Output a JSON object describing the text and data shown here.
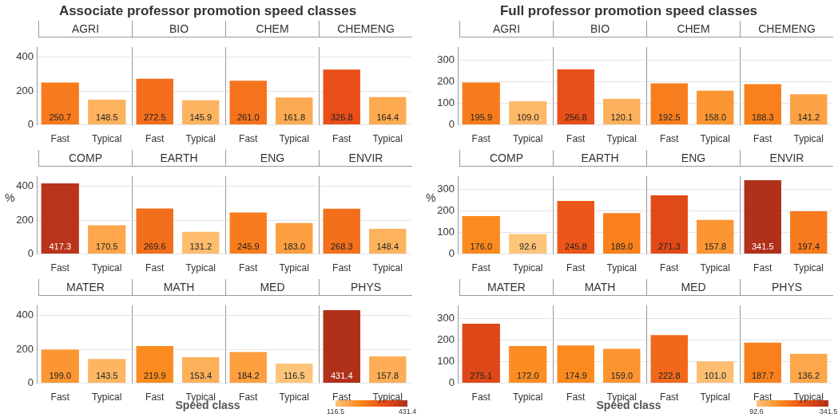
{
  "chart_data": [
    {
      "type": "other",
      "title": "Associate professor promotion speed classes",
      "xlabel": "Speed class",
      "ylabel": "%",
      "colors": [
        "#fec47a",
        "#fc8a1e",
        "#e94e18",
        "#b0301a"
      ],
      "annotations": [
        "116.5",
        "431.4"
      ]
    },
    {
      "type": "bar",
      "title": "AGRI",
      "categories": [
        "Fast",
        "Typical"
      ],
      "values": [
        250.7,
        148.5
      ],
      "colors": [
        "#f77a1c",
        "#fdb25e"
      ],
      "value_labels": [
        "250.7",
        "148.5"
      ],
      "ylim": [
        0,
        460
      ],
      "yticks": [
        0,
        200,
        400
      ],
      "grid": "y"
    },
    {
      "type": "bar",
      "title": "BIO",
      "categories": [
        "Fast",
        "Typical"
      ],
      "values": [
        272.5,
        145.9
      ],
      "colors": [
        "#f36d1b",
        "#fdb460"
      ],
      "value_labels": [
        "272.5",
        "145.9"
      ],
      "ylim": [
        0,
        460
      ],
      "yticks": [
        0,
        200,
        400
      ],
      "grid": "y",
      "tick_labels": "x"
    },
    {
      "type": "bar",
      "title": "CHEM",
      "categories": [
        "Fast",
        "Typical"
      ],
      "values": [
        261.0,
        161.8
      ],
      "colors": [
        "#f5731c",
        "#fdab52"
      ],
      "value_labels": [
        "261.0",
        "161.8"
      ],
      "ylim": [
        0,
        460
      ],
      "yticks": [
        0,
        200,
        400
      ],
      "grid": "y",
      "tick_labels": "x"
    },
    {
      "type": "bar",
      "title": "CHEMENG",
      "categories": [
        "Fast",
        "Typical"
      ],
      "values": [
        326.8,
        164.4
      ],
      "colors": [
        "#e94e18",
        "#fdaa50"
      ],
      "value_labels": [
        "326.8",
        "164.4"
      ],
      "ylim": [
        0,
        460
      ],
      "yticks": [
        0,
        200,
        400
      ],
      "grid": "y",
      "tick_labels": "x"
    },
    {
      "type": "bar",
      "title": "COMP",
      "categories": [
        "Fast",
        "Typical"
      ],
      "values": [
        417.3,
        170.5
      ],
      "colors": [
        "#b8341a",
        "#fda64b"
      ],
      "value_labels": [
        "417.3",
        "170.5"
      ],
      "ylim": [
        0,
        460
      ],
      "yticks": [
        0,
        200,
        400
      ],
      "grid": "y"
    },
    {
      "type": "bar",
      "title": "EARTH",
      "categories": [
        "Fast",
        "Typical"
      ],
      "values": [
        269.6,
        131.2
      ],
      "colors": [
        "#f36e1b",
        "#febc6d"
      ],
      "value_labels": [
        "269.6",
        "131.2"
      ],
      "ylim": [
        0,
        460
      ],
      "yticks": [
        0,
        200,
        400
      ],
      "grid": "y",
      "tick_labels": "x"
    },
    {
      "type": "bar",
      "title": "ENG",
      "categories": [
        "Fast",
        "Typical"
      ],
      "values": [
        245.9,
        183.0
      ],
      "colors": [
        "#f87c1d",
        "#fd9f40"
      ],
      "value_labels": [
        "245.9",
        "183.0"
      ],
      "ylim": [
        0,
        460
      ],
      "yticks": [
        0,
        200,
        400
      ],
      "grid": "y",
      "tick_labels": "x"
    },
    {
      "type": "bar",
      "title": "ENVIR",
      "categories": [
        "Fast",
        "Typical"
      ],
      "values": [
        268.3,
        148.4
      ],
      "colors": [
        "#f46f1b",
        "#fdb25e"
      ],
      "value_labels": [
        "268.3",
        "148.4"
      ],
      "ylim": [
        0,
        460
      ],
      "yticks": [
        0,
        200,
        400
      ],
      "grid": "y",
      "tick_labels": "x"
    },
    {
      "type": "bar",
      "title": "MATER",
      "categories": [
        "Fast",
        "Typical"
      ],
      "values": [
        199.0,
        143.5
      ],
      "colors": [
        "#fc9632",
        "#feb562"
      ],
      "value_labels": [
        "199.0",
        "143.5"
      ],
      "ylim": [
        0,
        460
      ],
      "yticks": [
        0,
        200,
        400
      ],
      "grid": "y"
    },
    {
      "type": "bar",
      "title": "MATH",
      "categories": [
        "Fast",
        "Typical"
      ],
      "values": [
        219.9,
        153.4
      ],
      "colors": [
        "#fc8b1f",
        "#fdb05a"
      ],
      "value_labels": [
        "219.9",
        "153.4"
      ],
      "ylim": [
        0,
        460
      ],
      "yticks": [
        0,
        200,
        400
      ],
      "grid": "y",
      "tick_labels": "x"
    },
    {
      "type": "bar",
      "title": "MED",
      "categories": [
        "Fast",
        "Typical"
      ],
      "values": [
        184.2,
        116.5
      ],
      "colors": [
        "#fd9f3f",
        "#fec47a"
      ],
      "value_labels": [
        "184.2",
        "116.5"
      ],
      "ylim": [
        0,
        460
      ],
      "yticks": [
        0,
        200,
        400
      ],
      "grid": "y",
      "tick_labels": "x"
    },
    {
      "type": "bar",
      "title": "PHYS",
      "categories": [
        "Fast",
        "Typical"
      ],
      "values": [
        431.4,
        157.8
      ],
      "colors": [
        "#b0301a",
        "#fdad56"
      ],
      "value_labels": [
        "431.4",
        "157.8"
      ],
      "ylim": [
        0,
        460
      ],
      "yticks": [
        0,
        200,
        400
      ],
      "grid": "y",
      "tick_labels": "x"
    },
    {
      "type": "other",
      "title": "Full professor promotion speed classes",
      "xlabel": "Speed class",
      "ylabel": "%",
      "colors": [
        "#fec47a",
        "#fc8a1e",
        "#e94e18",
        "#b0301a"
      ],
      "annotations": [
        "92.6",
        "341.5"
      ]
    },
    {
      "type": "bar",
      "title": "AGRI",
      "categories": [
        "Fast",
        "Typical"
      ],
      "values": [
        195.9,
        109.0
      ],
      "colors": [
        "#f77b1d",
        "#feb968"
      ],
      "value_labels": [
        "195.9",
        "109.0"
      ],
      "ylim": [
        0,
        360
      ],
      "yticks": [
        0,
        100,
        200,
        300
      ],
      "grid": "y"
    },
    {
      "type": "bar",
      "title": "BIO",
      "categories": [
        "Fast",
        "Typical"
      ],
      "values": [
        256.8,
        120.1
      ],
      "colors": [
        "#e94f18",
        "#fdb15c"
      ],
      "value_labels": [
        "256.8",
        "120.1"
      ],
      "ylim": [
        0,
        360
      ],
      "yticks": [
        0,
        100,
        200,
        300
      ],
      "grid": "y",
      "tick_labels": "x"
    },
    {
      "type": "bar",
      "title": "CHEM",
      "categories": [
        "Fast",
        "Typical"
      ],
      "values": [
        192.5,
        158.0
      ],
      "colors": [
        "#f87e1d",
        "#fc9632"
      ],
      "value_labels": [
        "192.5",
        "158.0"
      ],
      "ylim": [
        0,
        360
      ],
      "yticks": [
        0,
        100,
        200,
        300
      ],
      "grid": "y",
      "tick_labels": "x"
    },
    {
      "type": "bar",
      "title": "CHEMENG",
      "categories": [
        "Fast",
        "Typical"
      ],
      "values": [
        188.3,
        141.2
      ],
      "colors": [
        "#f9811d",
        "#fda244"
      ],
      "value_labels": [
        "188.3",
        "141.2"
      ],
      "ylim": [
        0,
        360
      ],
      "yticks": [
        0,
        100,
        200,
        300
      ],
      "grid": "y",
      "tick_labels": "x"
    },
    {
      "type": "bar",
      "title": "COMP",
      "categories": [
        "Fast",
        "Typical"
      ],
      "values": [
        176.0,
        92.6
      ],
      "colors": [
        "#fc8a1e",
        "#fec47a"
      ],
      "value_labels": [
        "176.0",
        "92.6"
      ],
      "ylim": [
        0,
        360
      ],
      "yticks": [
        0,
        100,
        200,
        300
      ],
      "grid": "y"
    },
    {
      "type": "bar",
      "title": "EARTH",
      "categories": [
        "Fast",
        "Typical"
      ],
      "values": [
        245.8,
        189.0
      ],
      "colors": [
        "#ec5719",
        "#f9801d"
      ],
      "value_labels": [
        "245.8",
        "189.0"
      ],
      "ylim": [
        0,
        360
      ],
      "yticks": [
        0,
        100,
        200,
        300
      ],
      "grid": "y",
      "tick_labels": "x"
    },
    {
      "type": "bar",
      "title": "ENG",
      "categories": [
        "Fast",
        "Typical"
      ],
      "values": [
        271.3,
        157.8
      ],
      "colors": [
        "#e04918",
        "#fc9632"
      ],
      "value_labels": [
        "271.3",
        "157.8"
      ],
      "ylim": [
        0,
        360
      ],
      "yticks": [
        0,
        100,
        200,
        300
      ],
      "grid": "y",
      "tick_labels": "x"
    },
    {
      "type": "bar",
      "title": "ENVIR",
      "categories": [
        "Fast",
        "Typical"
      ],
      "values": [
        341.5,
        197.4
      ],
      "colors": [
        "#b0301a",
        "#f77a1c"
      ],
      "value_labels": [
        "341.5",
        "197.4"
      ],
      "ylim": [
        0,
        360
      ],
      "yticks": [
        0,
        100,
        200,
        300
      ],
      "grid": "y",
      "tick_labels": "x"
    },
    {
      "type": "bar",
      "title": "MATER",
      "categories": [
        "Fast",
        "Typical"
      ],
      "values": [
        275.1,
        172.0
      ],
      "colors": [
        "#de4818",
        "#fc8d22"
      ],
      "value_labels": [
        "275.1",
        "172.0"
      ],
      "ylim": [
        0,
        360
      ],
      "yticks": [
        0,
        100,
        200,
        300
      ],
      "grid": "y"
    },
    {
      "type": "bar",
      "title": "MATH",
      "categories": [
        "Fast",
        "Typical"
      ],
      "values": [
        174.9,
        159.0
      ],
      "colors": [
        "#fc8a1f",
        "#fc9530"
      ],
      "value_labels": [
        "174.9",
        "159.0"
      ],
      "ylim": [
        0,
        360
      ],
      "yticks": [
        0,
        100,
        200,
        300
      ],
      "grid": "y",
      "tick_labels": "x"
    },
    {
      "type": "bar",
      "title": "MED",
      "categories": [
        "Fast",
        "Typical"
      ],
      "values": [
        222.8,
        101.0
      ],
      "colors": [
        "#f1681b",
        "#febe71"
      ],
      "value_labels": [
        "222.8",
        "101.0"
      ],
      "ylim": [
        0,
        360
      ],
      "yticks": [
        0,
        100,
        200,
        300
      ],
      "grid": "y",
      "tick_labels": "x"
    },
    {
      "type": "bar",
      "title": "PHYS",
      "categories": [
        "Fast",
        "Typical"
      ],
      "values": [
        187.7,
        136.2
      ],
      "colors": [
        "#f9811d",
        "#fda64a"
      ],
      "value_labels": [
        "187.7",
        "136.2"
      ],
      "ylim": [
        0,
        360
      ],
      "yticks": [
        0,
        100,
        200,
        300
      ],
      "grid": "y",
      "tick_labels": "x"
    }
  ]
}
